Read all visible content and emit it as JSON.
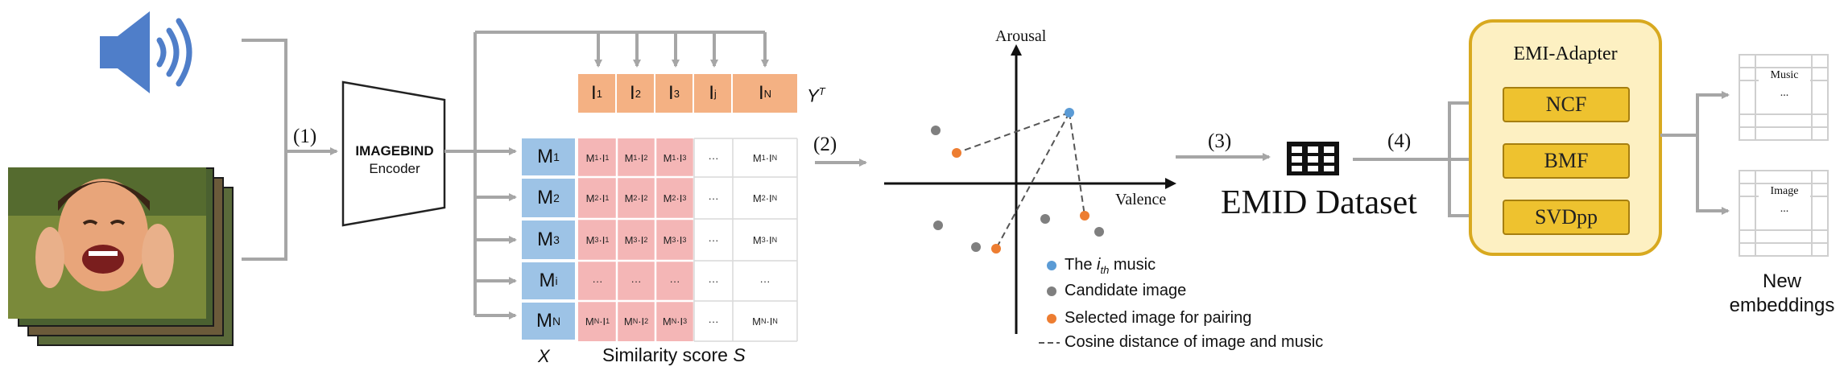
{
  "colors": {
    "arrow": "#a6a6a6",
    "speaker": "#4f7ec9",
    "image_header": "#f4b183",
    "music_cell": "#9dc3e6",
    "score_cell": "#f4b6b6",
    "point_music": "#5b9bd5",
    "point_candidate": "#7f7f7f",
    "point_selected": "#ed7d31",
    "adapter_fill": "#fdf0c2",
    "adapter_border": "#d8a91f",
    "adapter_box": "#eec22f"
  },
  "icons": {
    "audio": "speaker-icon",
    "photos": "image-stack-icon",
    "dataset": "table-grid-icon"
  },
  "steps": [
    "(1)",
    "(2)",
    "(3)",
    "(4)"
  ],
  "encoder": {
    "line1": "IMAGEBIND",
    "line2": "Encoder"
  },
  "images_row": [
    {
      "sym": "I",
      "sub": "1"
    },
    {
      "sym": "I",
      "sub": "2"
    },
    {
      "sym": "I",
      "sub": "3"
    },
    {
      "sym": "I",
      "sub": "j"
    },
    {
      "sym": "I",
      "sub": "N"
    }
  ],
  "transpose_label": {
    "sym": "Y",
    "sup": "T"
  },
  "music_col": [
    {
      "sym": "M",
      "sub": "1"
    },
    {
      "sym": "M",
      "sub": "2"
    },
    {
      "sym": "M",
      "sub": "3"
    },
    {
      "sym": "M",
      "sub": "i"
    },
    {
      "sym": "M",
      "sub": "N"
    }
  ],
  "x_label": "X",
  "similarity_label": {
    "text": "Similarity score",
    "sym": "S"
  },
  "ellipsis": "···",
  "plot": {
    "y_axis": "Arousal",
    "x_axis": "Valence",
    "legend": [
      {
        "type": "dot",
        "color": "#5b9bd5",
        "pre": "The ",
        "em": "i",
        "sub": "th",
        "post": " music"
      },
      {
        "type": "dot",
        "color": "#7f7f7f",
        "pre": "Candidate image",
        "em": "",
        "sub": "",
        "post": ""
      },
      {
        "type": "dot",
        "color": "#ed7d31",
        "pre": "Selected image for pairing",
        "em": "",
        "sub": "",
        "post": ""
      },
      {
        "type": "dash",
        "color": "#555555",
        "pre": "Cosine distance of image and music",
        "em": "",
        "sub": "",
        "post": ""
      }
    ]
  },
  "dataset": {
    "name": "EMID Dataset"
  },
  "adapter": {
    "title": "EMI-Adapter",
    "methods": [
      "NCF",
      "BMF",
      "SVDpp"
    ]
  },
  "outputs": {
    "music": "Music",
    "image": "Image",
    "dots": "...",
    "caption_line1": "New",
    "caption_line2": "embeddings"
  }
}
